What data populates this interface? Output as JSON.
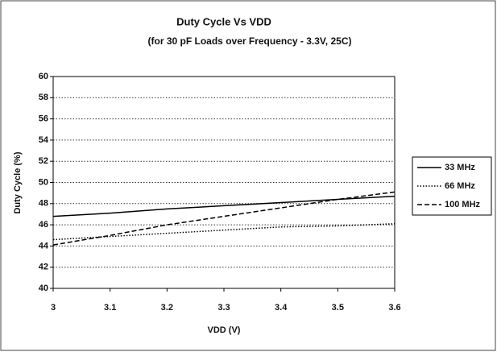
{
  "chart_data": {
    "type": "line",
    "title": "Duty Cycle Vs VDD",
    "subtitle": "(for 30 pF Loads over Frequency - 3.3V, 25C)",
    "xlabel": "VDD (V)",
    "ylabel": "Duty Cycle (%)",
    "x": [
      3,
      3.1,
      3.2,
      3.3,
      3.4,
      3.5,
      3.6
    ],
    "series": [
      {
        "name": "33 MHz",
        "color": "#000000",
        "dash": "solid",
        "values": [
          46.8,
          47.1,
          47.5,
          47.8,
          48.1,
          48.4,
          48.7
        ]
      },
      {
        "name": "66 MHz",
        "color": "#000000",
        "dash": "dotted",
        "values": [
          44.6,
          44.9,
          45.2,
          45.5,
          45.8,
          45.9,
          46.1
        ]
      },
      {
        "name": "100 MHz",
        "color": "#000000",
        "dash": "dashed",
        "values": [
          44.1,
          45.0,
          46.0,
          46.8,
          47.6,
          48.4,
          49.1
        ]
      }
    ],
    "xlim": [
      3,
      3.6
    ],
    "xticks": [
      3,
      3.1,
      3.2,
      3.3,
      3.4,
      3.5,
      3.6
    ],
    "ylim": [
      40,
      60
    ],
    "yticks": [
      40,
      42,
      44,
      46,
      48,
      50,
      52,
      54,
      56,
      58,
      60
    ],
    "grid": true,
    "legend": "right"
  }
}
